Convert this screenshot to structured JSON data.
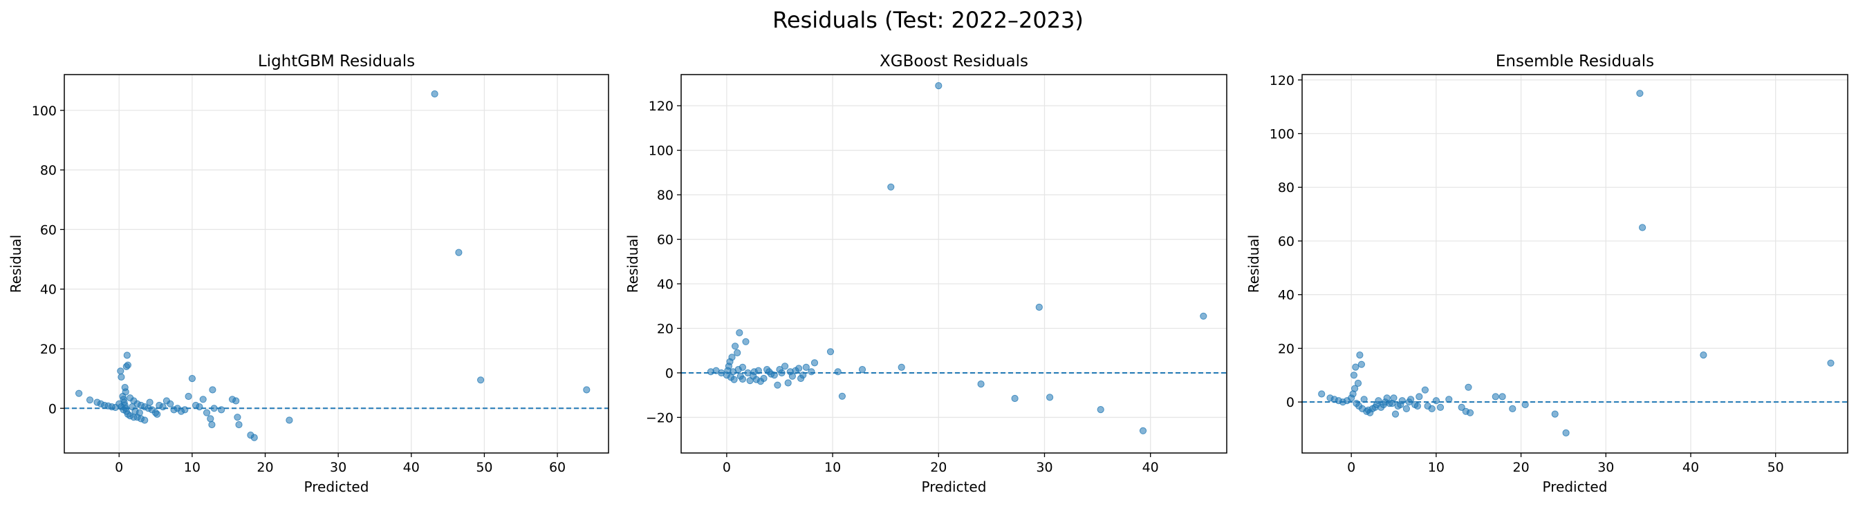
{
  "figure": {
    "title": "Residuals (Test: 2022–2023)",
    "point_color": "#1f77b4",
    "zero_line_color": "#1f77b4"
  },
  "chart_data": [
    {
      "type": "scatter",
      "title": "LightGBM Residuals",
      "xlabel": "Predicted",
      "ylabel": "Residual",
      "xlim": [
        -7.5,
        67
      ],
      "ylim": [
        -15,
        112
      ],
      "xticks": [
        0,
        10,
        20,
        30,
        40,
        50,
        60
      ],
      "yticks": [
        0,
        20,
        40,
        60,
        80,
        100
      ],
      "grid": true,
      "reference_line": {
        "y": 0,
        "style": "dashed"
      },
      "points": [
        [
          43.2,
          105.5
        ],
        [
          46.5,
          52.3
        ],
        [
          49.5,
          9.5
        ],
        [
          64.0,
          6.2
        ],
        [
          -5.5,
          5.0
        ],
        [
          -4.0,
          2.8
        ],
        [
          -3.0,
          2.0
        ],
        [
          -2.5,
          1.5
        ],
        [
          -2.0,
          1.0
        ],
        [
          -1.5,
          0.8
        ],
        [
          -1.0,
          0.5
        ],
        [
          -0.5,
          0.3
        ],
        [
          0.2,
          12.5
        ],
        [
          0.3,
          10.5
        ],
        [
          0.8,
          7.0
        ],
        [
          0.9,
          5.5
        ],
        [
          1.0,
          14.0
        ],
        [
          1.2,
          14.5
        ],
        [
          1.1,
          17.8
        ],
        [
          0.5,
          4.0
        ],
        [
          0.6,
          3.0
        ],
        [
          0.7,
          2.0
        ],
        [
          0.8,
          1.0
        ],
        [
          0.9,
          0.0
        ],
        [
          1.0,
          -1.0
        ],
        [
          1.2,
          -2.0
        ],
        [
          1.5,
          -2.5
        ],
        [
          2.0,
          -3.0
        ],
        [
          2.5,
          -3.0
        ],
        [
          3.0,
          -3.5
        ],
        [
          3.5,
          -4.0
        ],
        [
          1.5,
          3.5
        ],
        [
          2.0,
          2.5
        ],
        [
          2.5,
          1.5
        ],
        [
          3.0,
          1.0
        ],
        [
          3.5,
          0.5
        ],
        [
          4.0,
          0.0
        ],
        [
          4.5,
          -0.5
        ],
        [
          5.0,
          -1.5
        ],
        [
          5.5,
          1.0
        ],
        [
          6.0,
          0.5
        ],
        [
          6.5,
          2.5
        ],
        [
          7.0,
          1.5
        ],
        [
          7.5,
          -0.5
        ],
        [
          8.0,
          0.0
        ],
        [
          8.5,
          -1.0
        ],
        [
          9.0,
          -0.5
        ],
        [
          9.5,
          4.0
        ],
        [
          10.0,
          10.0
        ],
        [
          10.5,
          1.0
        ],
        [
          11.0,
          0.5
        ],
        [
          11.5,
          3.0
        ],
        [
          12.0,
          -1.5
        ],
        [
          12.5,
          -3.5
        ],
        [
          12.7,
          -5.5
        ],
        [
          12.8,
          6.2
        ],
        [
          13.0,
          0.0
        ],
        [
          14.0,
          -0.5
        ],
        [
          15.5,
          3.0
        ],
        [
          16.0,
          2.5
        ],
        [
          16.2,
          -3.0
        ],
        [
          16.4,
          -5.5
        ],
        [
          18.0,
          -9.0
        ],
        [
          18.5,
          -9.8
        ],
        [
          23.3,
          -4.0
        ],
        [
          0.0,
          1.5
        ],
        [
          0.3,
          0.5
        ],
        [
          0.6,
          -0.5
        ],
        [
          1.8,
          0.5
        ],
        [
          2.2,
          -1.0
        ],
        [
          2.8,
          -1.5
        ],
        [
          4.2,
          2.0
        ],
        [
          5.2,
          -2.0
        ]
      ]
    },
    {
      "type": "scatter",
      "title": "XGBoost Residuals",
      "xlabel": "Predicted",
      "ylabel": "Residual",
      "xlim": [
        -4.3,
        47.2
      ],
      "ylim": [
        -36,
        134
      ],
      "xticks": [
        0,
        10,
        20,
        30,
        40
      ],
      "yticks": [
        -20,
        0,
        20,
        40,
        60,
        80,
        100,
        120
      ],
      "grid": true,
      "reference_line": {
        "y": 0,
        "style": "dashed"
      },
      "points": [
        [
          20.0,
          129.0
        ],
        [
          15.5,
          83.5
        ],
        [
          29.5,
          29.5
        ],
        [
          45.0,
          25.5
        ],
        [
          39.3,
          -26.0
        ],
        [
          35.3,
          -16.5
        ],
        [
          30.5,
          -11.0
        ],
        [
          27.2,
          -11.5
        ],
        [
          24.0,
          -5.0
        ],
        [
          16.5,
          2.5
        ],
        [
          12.8,
          1.5
        ],
        [
          10.9,
          -10.5
        ],
        [
          10.5,
          0.5
        ],
        [
          9.8,
          9.5
        ],
        [
          8.3,
          4.5
        ],
        [
          7.5,
          2.5
        ],
        [
          7.0,
          -2.5
        ],
        [
          6.5,
          1.0
        ],
        [
          6.0,
          0.5
        ],
        [
          5.5,
          3.0
        ],
        [
          5.0,
          1.5
        ],
        [
          4.5,
          -1.0
        ],
        [
          4.0,
          0.5
        ],
        [
          3.5,
          -2.5
        ],
        [
          3.0,
          1.0
        ],
        [
          2.5,
          -1.5
        ],
        [
          2.0,
          0.0
        ],
        [
          1.5,
          2.5
        ],
        [
          1.2,
          18.0
        ],
        [
          1.8,
          14.0
        ],
        [
          0.8,
          12.0
        ],
        [
          1.0,
          9.0
        ],
        [
          0.5,
          7.0
        ],
        [
          0.3,
          5.0
        ],
        [
          0.2,
          3.0
        ],
        [
          0.1,
          1.0
        ],
        [
          0.0,
          -1.0
        ],
        [
          0.4,
          -2.0
        ],
        [
          0.7,
          -3.0
        ],
        [
          1.3,
          -1.5
        ],
        [
          1.5,
          -2.8
        ],
        [
          2.2,
          -3.5
        ],
        [
          2.8,
          -3.0
        ],
        [
          3.2,
          -3.8
        ],
        [
          4.8,
          -5.5
        ],
        [
          5.8,
          -4.5
        ],
        [
          6.8,
          2.0
        ],
        [
          7.2,
          -1.0
        ],
        [
          8.0,
          0.5
        ],
        [
          -1.5,
          0.5
        ],
        [
          -1.0,
          1.0
        ],
        [
          -0.5,
          0.0
        ],
        [
          0.6,
          0.5
        ],
        [
          1.1,
          1.5
        ],
        [
          2.6,
          0.5
        ],
        [
          3.8,
          1.5
        ],
        [
          4.2,
          -0.5
        ],
        [
          5.2,
          0.0
        ],
        [
          6.2,
          -1.5
        ]
      ]
    },
    {
      "type": "scatter",
      "title": "Ensemble Residuals",
      "xlabel": "Predicted",
      "ylabel": "Residual",
      "xlim": [
        -5.8,
        58.5
      ],
      "ylim": [
        -19,
        122
      ],
      "xticks": [
        0,
        10,
        20,
        30,
        40,
        50
      ],
      "yticks": [
        0,
        20,
        40,
        60,
        80,
        100,
        120
      ],
      "grid": true,
      "reference_line": {
        "y": 0,
        "style": "dashed"
      },
      "points": [
        [
          34.0,
          115.0
        ],
        [
          34.3,
          65.0
        ],
        [
          41.5,
          17.5
        ],
        [
          56.5,
          14.5
        ],
        [
          25.3,
          -11.5
        ],
        [
          24.0,
          -4.5
        ],
        [
          20.5,
          -1.0
        ],
        [
          19.0,
          -2.5
        ],
        [
          17.8,
          2.0
        ],
        [
          17.0,
          2.0
        ],
        [
          13.8,
          5.5
        ],
        [
          14.0,
          -4.0
        ],
        [
          13.5,
          -3.5
        ],
        [
          13.0,
          -2.0
        ],
        [
          11.5,
          1.0
        ],
        [
          10.5,
          -2.0
        ],
        [
          10.0,
          0.5
        ],
        [
          9.0,
          -1.5
        ],
        [
          8.7,
          4.5
        ],
        [
          8.0,
          2.0
        ],
        [
          7.5,
          -1.0
        ],
        [
          7.0,
          1.0
        ],
        [
          6.5,
          -2.5
        ],
        [
          6.0,
          0.5
        ],
        [
          5.5,
          -1.5
        ],
        [
          5.2,
          -4.5
        ],
        [
          5.0,
          1.5
        ],
        [
          4.5,
          -0.5
        ],
        [
          4.0,
          0.0
        ],
        [
          3.5,
          -2.0
        ],
        [
          3.0,
          -1.0
        ],
        [
          2.5,
          -2.5
        ],
        [
          2.0,
          -3.0
        ],
        [
          1.5,
          1.0
        ],
        [
          1.0,
          17.5
        ],
        [
          1.2,
          14.0
        ],
        [
          0.5,
          13.0
        ],
        [
          0.3,
          10.0
        ],
        [
          0.8,
          7.0
        ],
        [
          0.4,
          5.0
        ],
        [
          0.2,
          3.0
        ],
        [
          0.0,
          1.5
        ],
        [
          -0.5,
          0.5
        ],
        [
          -1.0,
          0.0
        ],
        [
          -1.5,
          0.5
        ],
        [
          -2.0,
          1.0
        ],
        [
          -2.5,
          1.5
        ],
        [
          -3.5,
          3.0
        ],
        [
          0.6,
          -0.5
        ],
        [
          0.9,
          -1.5
        ],
        [
          1.3,
          -2.5
        ],
        [
          1.8,
          -3.5
        ],
        [
          2.2,
          -4.0
        ],
        [
          2.8,
          -2.0
        ],
        [
          3.2,
          0.5
        ],
        [
          3.8,
          -1.0
        ],
        [
          4.2,
          1.5
        ],
        [
          4.8,
          -0.5
        ],
        [
          5.8,
          -1.0
        ],
        [
          6.8,
          0.0
        ],
        [
          7.8,
          -1.5
        ],
        [
          9.5,
          -2.5
        ]
      ]
    }
  ]
}
